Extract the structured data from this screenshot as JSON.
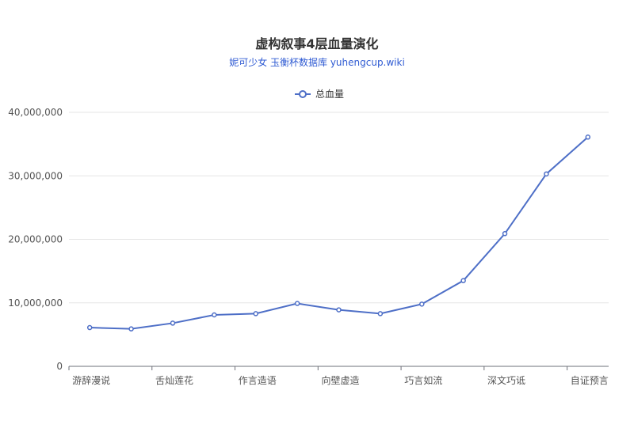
{
  "colors": {
    "series": "#4e6fc7",
    "grid": "#e6e6e6",
    "axis": "#6e7079",
    "subtitle": "#2f5bd3"
  },
  "subtitle_link_text": "妮可少女 玉衡杯数据库 yuhengcup.wiki",
  "chart_data": {
    "type": "line",
    "title": "虚构叙事4层血量演化",
    "subtitle": "妮可少女 玉衡杯数据库 yuhengcup.wiki",
    "legend": {
      "position": "top-center",
      "entries": [
        "总血量"
      ]
    },
    "categories": [
      "游辞漫说",
      "",
      "舌灿莲花",
      "",
      "作言造语",
      "",
      "向壁虚造",
      "",
      "巧言如流",
      "",
      "深文巧诋",
      "",
      "自证预言"
    ],
    "x_tick_labels": [
      "游辞漫说",
      "舌灿莲花",
      "作言造语",
      "向壁虚造",
      "巧言如流",
      "深文巧诋",
      "自证预言"
    ],
    "series": [
      {
        "name": "总血量",
        "values": [
          6100000,
          5900000,
          6800000,
          8100000,
          8300000,
          9900000,
          8900000,
          8300000,
          9800000,
          13500000,
          20900000,
          30300000,
          36100000
        ]
      }
    ],
    "ylim": [
      0,
      40000000
    ],
    "y_ticks": [
      0,
      10000000,
      20000000,
      30000000,
      40000000
    ],
    "y_tick_labels": [
      "0",
      "10,000,000",
      "20,000,000",
      "30,000,000",
      "40,000,000"
    ],
    "grid": true
  }
}
